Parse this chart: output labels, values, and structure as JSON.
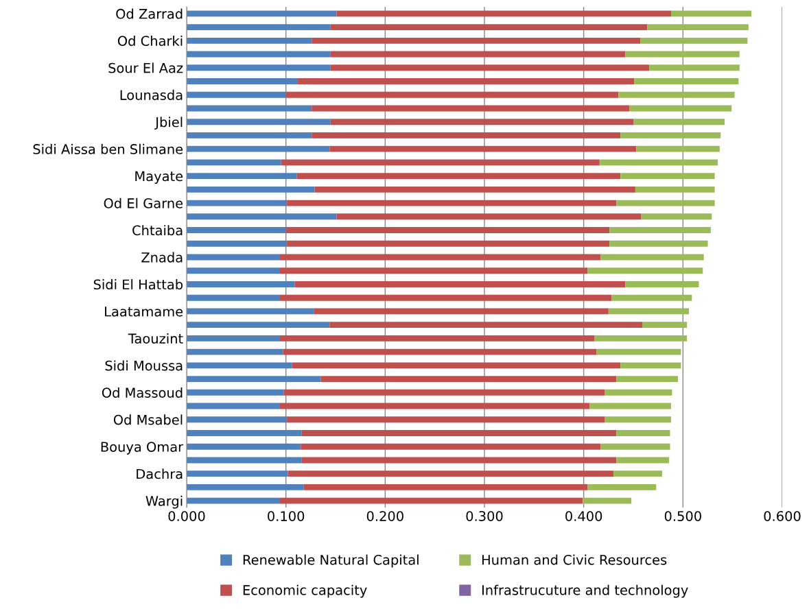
{
  "chart_data": {
    "type": "bar",
    "orientation": "horizontal",
    "stacked": true,
    "categories": [
      "Od Zarrad",
      null,
      "Od Charki",
      null,
      "Sour El Aaz",
      null,
      "Lounasda",
      null,
      "Jbiel",
      null,
      "Sidi Aissa ben Slimane",
      null,
      "Mayate",
      null,
      "Od El Garne",
      null,
      "Chtaiba",
      null,
      "Znada",
      null,
      "Sidi El Hattab",
      null,
      "Laatamame",
      null,
      "Taouzint",
      null,
      "Sidi Moussa",
      null,
      "Od Massoud",
      null,
      "Od Msabel",
      null,
      "Bouya Omar",
      null,
      "Dachra",
      null,
      "Wargi"
    ],
    "series": [
      {
        "name": "Renewable Natural Capital",
        "color": "#4f81bd",
        "values": [
          0.151,
          0.145,
          0.126,
          0.145,
          0.145,
          0.112,
          0.1,
          0.126,
          0.145,
          0.126,
          0.144,
          0.095,
          0.111,
          0.129,
          0.101,
          0.151,
          0.1,
          0.101,
          0.094,
          0.094,
          0.109,
          0.094,
          0.128,
          0.144,
          0.094,
          0.097,
          0.106,
          0.135,
          0.098,
          0.094,
          0.101,
          0.116,
          0.115,
          0.116,
          0.102,
          0.118,
          0.094
        ]
      },
      {
        "name": "Economic capacity",
        "color": "#c0504d",
        "values": [
          0.337,
          0.319,
          0.331,
          0.297,
          0.321,
          0.339,
          0.335,
          0.32,
          0.305,
          0.311,
          0.309,
          0.321,
          0.326,
          0.323,
          0.332,
          0.307,
          0.326,
          0.325,
          0.323,
          0.31,
          0.333,
          0.334,
          0.297,
          0.315,
          0.317,
          0.316,
          0.331,
          0.298,
          0.323,
          0.312,
          0.32,
          0.317,
          0.302,
          0.317,
          0.328,
          0.286,
          0.305
        ]
      },
      {
        "name": "Human and Civic Resources",
        "color": "#9bbb59",
        "values": [
          0.081,
          0.102,
          0.108,
          0.115,
          0.091,
          0.105,
          0.117,
          0.103,
          0.092,
          0.101,
          0.084,
          0.119,
          0.095,
          0.08,
          0.099,
          0.071,
          0.102,
          0.099,
          0.104,
          0.116,
          0.074,
          0.081,
          0.081,
          0.045,
          0.093,
          0.085,
          0.061,
          0.062,
          0.068,
          0.082,
          0.067,
          0.054,
          0.07,
          0.053,
          0.049,
          0.069,
          0.049
        ]
      },
      {
        "name": "Infrastrucuture and technology",
        "color": "#8064a2",
        "values": [
          0,
          0,
          0,
          0,
          0,
          0,
          0,
          0,
          0,
          0,
          0,
          0,
          0,
          0,
          0,
          0,
          0,
          0,
          0,
          0,
          0,
          0,
          0,
          0,
          0,
          0,
          0,
          0,
          0,
          0,
          0,
          0,
          0,
          0,
          0,
          0,
          0
        ]
      }
    ],
    "xlim": [
      0,
      0.6
    ],
    "xticks": [
      {
        "value": 0,
        "label": "0.000"
      },
      {
        "value": 0.1,
        "label": "0.100"
      },
      {
        "value": 0.2,
        "label": "0.200"
      },
      {
        "value": 0.3,
        "label": "0.300"
      },
      {
        "value": 0.4,
        "label": "0.400"
      },
      {
        "value": 0.5,
        "label": "0.500"
      },
      {
        "value": 0.6,
        "label": "0.600"
      }
    ],
    "grid": "x",
    "legend": "bottom"
  }
}
